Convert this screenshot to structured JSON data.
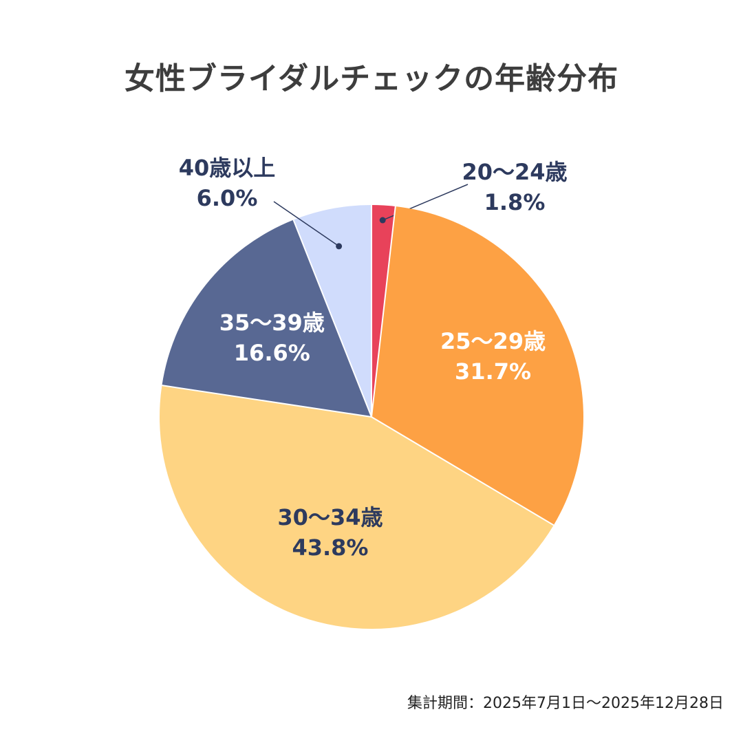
{
  "title": "女性ブライダルチェックの年齢分布",
  "footnote": "集計期間：2025年7月1日〜2025年12月28日",
  "chart_data": {
    "type": "pie",
    "title": "女性ブライダルチェックの年齢分布",
    "start": "top",
    "direction": "clockwise",
    "slices": [
      {
        "label": "20〜24歳",
        "value": 1.8,
        "display": "1.8%",
        "color": "#e8425a"
      },
      {
        "label": "25〜29歳",
        "value": 31.7,
        "display": "31.7%",
        "color": "#fda144"
      },
      {
        "label": "30〜34歳",
        "value": 43.8,
        "display": "43.8%",
        "color": "#fed483"
      },
      {
        "label": "35〜39歳",
        "value": 16.6,
        "display": "16.6%",
        "color": "#586893"
      },
      {
        "label": "40歳以上",
        "value": 6.0,
        "display": "6.0%",
        "color": "#d0dcfc"
      }
    ]
  },
  "colors": {
    "label_dark": "#2d3a5e",
    "label_light": "#ffffff",
    "title": "#3d3d3d"
  }
}
